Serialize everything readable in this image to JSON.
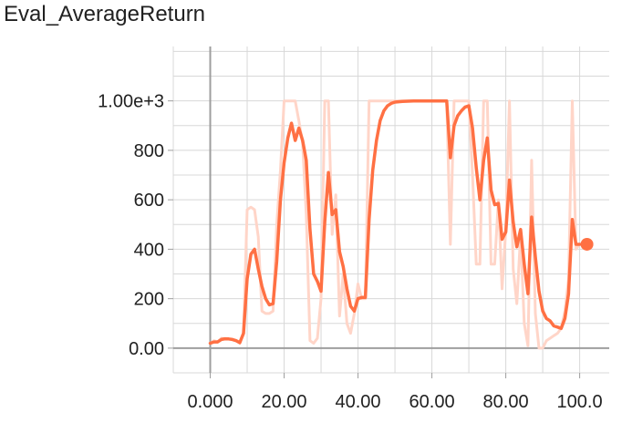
{
  "chart_data": {
    "type": "line",
    "title": "Eval_AverageReturn",
    "xlabel": "",
    "ylabel": "",
    "xlim": [
      -10,
      108
    ],
    "ylim": [
      -100,
      1220
    ],
    "x_ticks": [
      0,
      20,
      40,
      60,
      80,
      100
    ],
    "x_tick_labels": [
      "0.000",
      "20.00",
      "40.00",
      "60.00",
      "80.00",
      "100.0"
    ],
    "y_ticks": [
      0,
      200,
      400,
      600,
      800,
      1000
    ],
    "y_tick_labels": [
      "0.00",
      "200",
      "400",
      "600",
      "800",
      "1.00e+3"
    ],
    "grid": true,
    "colors": {
      "smoothed": "#ff7043",
      "raw": "#ffd5c8",
      "grid": "#d8d8d8",
      "axis": "#9e9e9e"
    },
    "series": [
      {
        "values": [
          [
            0,
            20
          ],
          [
            1,
            25
          ],
          [
            2,
            25
          ],
          [
            3,
            35
          ],
          [
            4,
            38
          ],
          [
            5,
            37
          ],
          [
            6,
            35
          ],
          [
            7,
            30
          ],
          [
            8,
            22
          ],
          [
            9,
            60
          ],
          [
            10,
            280
          ],
          [
            11,
            380
          ],
          [
            12,
            400
          ],
          [
            13,
            320
          ],
          [
            14,
            250
          ],
          [
            15,
            200
          ],
          [
            16,
            175
          ],
          [
            17,
            180
          ],
          [
            18,
            350
          ],
          [
            19,
            600
          ],
          [
            20,
            750
          ],
          [
            21,
            850
          ],
          [
            22,
            910
          ],
          [
            23,
            840
          ],
          [
            24,
            890
          ],
          [
            25,
            840
          ],
          [
            26,
            760
          ],
          [
            27,
            480
          ],
          [
            28,
            300
          ],
          [
            29,
            270
          ],
          [
            30,
            230
          ],
          [
            31,
            510
          ],
          [
            32,
            710
          ],
          [
            33,
            540
          ],
          [
            34,
            560
          ],
          [
            35,
            390
          ],
          [
            36,
            330
          ],
          [
            37,
            240
          ],
          [
            38,
            170
          ],
          [
            39,
            150
          ],
          [
            40,
            200
          ],
          [
            41,
            205
          ],
          [
            42,
            205
          ],
          [
            43,
            520
          ],
          [
            44,
            720
          ],
          [
            45,
            840
          ],
          [
            46,
            920
          ],
          [
            47,
            960
          ],
          [
            48,
            980
          ],
          [
            49,
            990
          ],
          [
            50,
            995
          ],
          [
            52,
            998
          ],
          [
            55,
            1000
          ],
          [
            58,
            1000
          ],
          [
            60,
            1000
          ],
          [
            62,
            1000
          ],
          [
            64,
            1000
          ],
          [
            65,
            770
          ],
          [
            66,
            900
          ],
          [
            67,
            940
          ],
          [
            68,
            960
          ],
          [
            69,
            975
          ],
          [
            70,
            980
          ],
          [
            71,
            890
          ],
          [
            72,
            730
          ],
          [
            73,
            600
          ],
          [
            74,
            760
          ],
          [
            75,
            850
          ],
          [
            76,
            640
          ],
          [
            77,
            580
          ],
          [
            78,
            585
          ],
          [
            79,
            440
          ],
          [
            80,
            470
          ],
          [
            81,
            680
          ],
          [
            82,
            510
          ],
          [
            83,
            410
          ],
          [
            84,
            480
          ],
          [
            85,
            340
          ],
          [
            86,
            220
          ],
          [
            87,
            530
          ],
          [
            88,
            370
          ],
          [
            89,
            230
          ],
          [
            90,
            150
          ],
          [
            91,
            120
          ],
          [
            92,
            110
          ],
          [
            93,
            90
          ],
          [
            94,
            85
          ],
          [
            95,
            80
          ],
          [
            96,
            120
          ],
          [
            97,
            220
          ],
          [
            98,
            520
          ],
          [
            99,
            420
          ],
          [
            100,
            420
          ]
        ]
      },
      {
        "values": [
          [
            0,
            20
          ],
          [
            1,
            30
          ],
          [
            2,
            25
          ],
          [
            3,
            40
          ],
          [
            4,
            38
          ],
          [
            5,
            37
          ],
          [
            6,
            35
          ],
          [
            7,
            30
          ],
          [
            8,
            20
          ],
          [
            9,
            60
          ],
          [
            10,
            560
          ],
          [
            11,
            570
          ],
          [
            12,
            560
          ],
          [
            13,
            450
          ],
          [
            14,
            150
          ],
          [
            15,
            140
          ],
          [
            16,
            140
          ],
          [
            17,
            150
          ],
          [
            18,
            500
          ],
          [
            19,
            720
          ],
          [
            20,
            1000
          ],
          [
            21,
            1000
          ],
          [
            22,
            1000
          ],
          [
            23,
            1000
          ],
          [
            24,
            920
          ],
          [
            25,
            830
          ],
          [
            26,
            540
          ],
          [
            27,
            30
          ],
          [
            28,
            20
          ],
          [
            29,
            40
          ],
          [
            30,
            200
          ],
          [
            31,
            1000
          ],
          [
            32,
            1000
          ],
          [
            33,
            460
          ],
          [
            34,
            620
          ],
          [
            35,
            130
          ],
          [
            36,
            300
          ],
          [
            37,
            100
          ],
          [
            38,
            60
          ],
          [
            39,
            140
          ],
          [
            40,
            260
          ],
          [
            41,
            200
          ],
          [
            42,
            200
          ],
          [
            43,
            1000
          ],
          [
            44,
            1000
          ],
          [
            45,
            1000
          ],
          [
            46,
            1000
          ],
          [
            47,
            1000
          ],
          [
            48,
            1000
          ],
          [
            49,
            1000
          ],
          [
            50,
            1000
          ],
          [
            52,
            1000
          ],
          [
            55,
            1000
          ],
          [
            58,
            1000
          ],
          [
            60,
            1000
          ],
          [
            62,
            1000
          ],
          [
            64,
            1000
          ],
          [
            65,
            420
          ],
          [
            66,
            1000
          ],
          [
            67,
            1000
          ],
          [
            68,
            1000
          ],
          [
            69,
            1000
          ],
          [
            70,
            1000
          ],
          [
            71,
            700
          ],
          [
            72,
            340
          ],
          [
            73,
            340
          ],
          [
            74,
            1000
          ],
          [
            75,
            1000
          ],
          [
            76,
            340
          ],
          [
            77,
            340
          ],
          [
            78,
            600
          ],
          [
            79,
            240
          ],
          [
            80,
            480
          ],
          [
            81,
            1000
          ],
          [
            82,
            320
          ],
          [
            83,
            180
          ],
          [
            84,
            460
          ],
          [
            85,
            100
          ],
          [
            86,
            10
          ],
          [
            87,
            760
          ],
          [
            88,
            140
          ],
          [
            89,
            0
          ],
          [
            90,
            0
          ],
          [
            91,
            30
          ],
          [
            92,
            40
          ],
          [
            93,
            50
          ],
          [
            94,
            60
          ],
          [
            95,
            80
          ],
          [
            96,
            150
          ],
          [
            97,
            280
          ],
          [
            98,
            1000
          ],
          [
            99,
            400
          ],
          [
            100,
            420
          ]
        ]
      }
    ]
  }
}
